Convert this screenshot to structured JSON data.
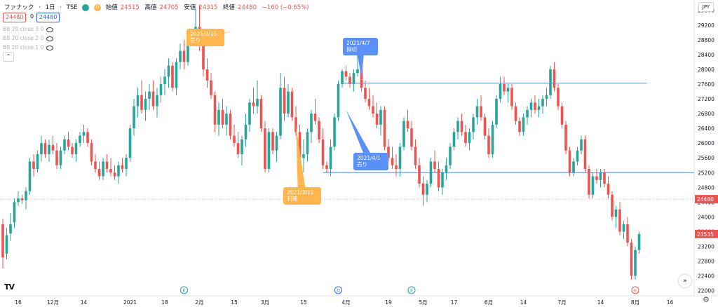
{
  "header": {
    "symbol": "ファナック",
    "interval": "1日",
    "exchange": "TSE",
    "open_label": "始値",
    "open": "24515",
    "high_label": "高値",
    "high": "24705",
    "low_label": "安値",
    "low": "24315",
    "close_label": "終値",
    "close": "24480",
    "change": "−160 (−0.65%)",
    "badge_d": "D",
    "bid": "24480",
    "spread": "0",
    "ask": "24480"
  },
  "indicators": [
    {
      "label": "BB 20 close 3 0"
    },
    {
      "label": "BB 20 close 2 0"
    },
    {
      "label": "BB 20 close 1 0"
    }
  ],
  "currency": "JPY",
  "colors": {
    "up": "#26a69a",
    "down": "#ef5350",
    "line": "#2962ff",
    "callout_orange": "#ffb74d",
    "callout_blue": "#5b8ff9"
  },
  "events": [
    {
      "text": "E",
      "color": "#26a69a",
      "x_index": 47
    },
    {
      "text": "D",
      "color": "#2962ff",
      "x_index": 87
    },
    {
      "text": "E",
      "color": "#26a69a",
      "x_index": 106
    },
    {
      "text": "E",
      "color": "#ef5350",
      "x_index": 164
    }
  ],
  "chart_data": {
    "type": "candlestick",
    "title": "",
    "xlabel": "",
    "ylabel": "",
    "ylim": [
      21860,
      29880
    ],
    "y_ticks": [
      22000,
      22400,
      22800,
      23200,
      23600,
      24000,
      24400,
      24800,
      25200,
      25600,
      26000,
      26400,
      26800,
      27200,
      27600,
      28000,
      28400,
      28800,
      29200,
      29600
    ],
    "x_ticks": [
      {
        "label": "16",
        "i": 4
      },
      {
        "label": "12月",
        "i": 13
      },
      {
        "label": "14",
        "i": 21
      },
      {
        "label": "2021",
        "i": 33
      },
      {
        "label": "18",
        "i": 42
      },
      {
        "label": "2月",
        "i": 51
      },
      {
        "label": "15",
        "i": 60
      },
      {
        "label": "3月",
        "i": 68
      },
      {
        "label": "15",
        "i": 78
      },
      {
        "label": "4月",
        "i": 89
      },
      {
        "label": "19",
        "i": 100
      },
      {
        "label": "5月",
        "i": 109
      },
      {
        "label": "17",
        "i": 117
      },
      {
        "label": "6月",
        "i": 126
      },
      {
        "label": "14",
        "i": 135
      },
      {
        "label": "7月",
        "i": 145
      },
      {
        "label": "14",
        "i": 155
      },
      {
        "label": "8月",
        "i": 164
      },
      {
        "label": "16",
        "i": 173
      }
    ],
    "last_price": 24480,
    "price_label_2": 23535,
    "support_line": {
      "price": 25200,
      "from_index": 83
    },
    "resistance_line": {
      "price": 27630,
      "from_index": 88,
      "to_index": 167
    },
    "annotations": [
      {
        "text_lines": [
          "2021/2/15",
          "売り"
        ],
        "color": "#ffb74d",
        "target_index": 60,
        "target_price": 29050
      },
      {
        "text_lines": [
          "2021/3/11",
          "利確"
        ],
        "color": "#ffb74d",
        "target_index": 76,
        "target_price": 26500
      },
      {
        "text_lines": [
          "2021/4/7",
          "損切"
        ],
        "color": "#5b8ff9",
        "target_index": 93,
        "target_price": 27750
      },
      {
        "text_lines": [
          "2021/4/1",
          "売り"
        ],
        "color": "#5b8ff9",
        "target_index": 89,
        "target_price": 26900
      }
    ],
    "candles": [
      [
        23800,
        23950,
        22600,
        22900
      ],
      [
        23000,
        23700,
        22850,
        23500
      ],
      [
        23550,
        24100,
        23350,
        23800
      ],
      [
        23850,
        24500,
        23700,
        24400
      ],
      [
        24400,
        24700,
        24300,
        24500
      ],
      [
        24500,
        24600,
        24350,
        24450
      ],
      [
        24450,
        24800,
        24200,
        24700
      ],
      [
        24700,
        25600,
        24600,
        25500
      ],
      [
        25500,
        25700,
        25100,
        25300
      ],
      [
        25300,
        25800,
        25200,
        25700
      ],
      [
        25700,
        26200,
        25500,
        26000
      ],
      [
        26000,
        26100,
        25600,
        25700
      ],
      [
        25700,
        26100,
        25500,
        25950
      ],
      [
        25950,
        26200,
        25700,
        25800
      ],
      [
        25800,
        26000,
        25300,
        25400
      ],
      [
        25400,
        25900,
        25300,
        25800
      ],
      [
        25800,
        26200,
        25700,
        26100
      ],
      [
        26100,
        26300,
        25800,
        25900
      ],
      [
        25900,
        26000,
        25600,
        25700
      ],
      [
        25700,
        26100,
        25500,
        26000
      ],
      [
        26000,
        26300,
        25900,
        26200
      ],
      [
        26200,
        26500,
        26000,
        26300
      ],
      [
        26300,
        26400,
        25900,
        26000
      ],
      [
        26000,
        26100,
        25400,
        25500
      ],
      [
        25500,
        25700,
        25200,
        25300
      ],
      [
        25300,
        25500,
        25000,
        25100
      ],
      [
        25100,
        25600,
        25000,
        25500
      ],
      [
        25500,
        25700,
        25200,
        25300
      ],
      [
        25300,
        25600,
        25100,
        25200
      ],
      [
        25200,
        25400,
        25000,
        25100
      ],
      [
        25100,
        25500,
        24900,
        25400
      ],
      [
        25400,
        25600,
        25200,
        25300
      ],
      [
        25300,
        25700,
        25100,
        25600
      ],
      [
        25600,
        26500,
        25500,
        26400
      ],
      [
        26400,
        27200,
        26200,
        27000
      ],
      [
        27000,
        27500,
        26700,
        27300
      ],
      [
        27300,
        27700,
        26800,
        26900
      ],
      [
        26900,
        27400,
        26600,
        27200
      ],
      [
        27200,
        27600,
        26900,
        27400
      ],
      [
        27400,
        27700,
        26900,
        27000
      ],
      [
        27000,
        27500,
        26700,
        27300
      ],
      [
        27300,
        27800,
        27100,
        27600
      ],
      [
        27600,
        28000,
        27300,
        27800
      ],
      [
        27800,
        28300,
        27500,
        28100
      ],
      [
        28100,
        28200,
        27400,
        27500
      ],
      [
        27500,
        28300,
        27300,
        28200
      ],
      [
        28200,
        28700,
        28000,
        28500
      ],
      [
        28500,
        28800,
        28000,
        28200
      ],
      [
        28200,
        29050,
        28100,
        28950
      ],
      [
        28950,
        29100,
        28700,
        28900
      ],
      [
        28900,
        29650,
        28700,
        29150
      ],
      [
        29150,
        29750,
        28500,
        28700
      ],
      [
        28700,
        28900,
        27800,
        28000
      ],
      [
        28000,
        28300,
        27500,
        27700
      ],
      [
        27700,
        27900,
        27200,
        27300
      ],
      [
        27300,
        27400,
        26300,
        26500
      ],
      [
        26500,
        27100,
        26200,
        26900
      ],
      [
        26900,
        27200,
        26400,
        26500
      ],
      [
        26500,
        27000,
        26200,
        26800
      ],
      [
        26800,
        26900,
        26100,
        26200
      ],
      [
        26200,
        26500,
        25900,
        26000
      ],
      [
        26000,
        26300,
        25600,
        25700
      ],
      [
        25700,
        26200,
        25400,
        26100
      ],
      [
        26100,
        26800,
        25900,
        26500
      ],
      [
        26500,
        27200,
        26300,
        27100
      ],
      [
        27100,
        27500,
        26800,
        27000
      ],
      [
        27000,
        27700,
        26800,
        27200
      ],
      [
        27200,
        27300,
        26300,
        26400
      ],
      [
        26400,
        26600,
        25200,
        25300
      ],
      [
        25300,
        26400,
        25200,
        26300
      ],
      [
        26300,
        26400,
        25700,
        25800
      ],
      [
        25800,
        26300,
        25500,
        26200
      ],
      [
        26200,
        27900,
        26100,
        27500
      ],
      [
        27500,
        27800,
        26600,
        26800
      ],
      [
        26800,
        27600,
        26700,
        27400
      ],
      [
        27400,
        27500,
        26600,
        26700
      ],
      [
        26700,
        27000,
        26200,
        26300
      ],
      [
        26300,
        26500,
        25500,
        25600
      ],
      [
        25600,
        26100,
        25200,
        25700
      ],
      [
        25700,
        26400,
        25500,
        26300
      ],
      [
        26300,
        26900,
        26000,
        26800
      ],
      [
        26800,
        27200,
        26500,
        26600
      ],
      [
        26600,
        26700,
        26000,
        26100
      ],
      [
        26100,
        26400,
        25300,
        25400
      ],
      [
        25400,
        25500,
        25200,
        25300
      ],
      [
        25300,
        26100,
        25100,
        25900
      ],
      [
        25900,
        26800,
        25800,
        26700
      ],
      [
        26700,
        27700,
        26600,
        27600
      ],
      [
        27600,
        28000,
        27500,
        27950
      ],
      [
        27950,
        28100,
        27700,
        27800
      ],
      [
        27800,
        27900,
        27500,
        27600
      ],
      [
        27600,
        28000,
        27400,
        27900
      ],
      [
        27900,
        28800,
        27800,
        28000
      ],
      [
        28000,
        28200,
        27400,
        27500
      ],
      [
        27500,
        27700,
        27100,
        27200
      ],
      [
        27200,
        27500,
        26900,
        27000
      ],
      [
        27000,
        27300,
        26700,
        26800
      ],
      [
        26800,
        27100,
        26400,
        26500
      ],
      [
        26500,
        27000,
        26200,
        26900
      ],
      [
        26900,
        27000,
        25800,
        25900
      ],
      [
        25900,
        26100,
        25500,
        25600
      ],
      [
        25600,
        25900,
        25300,
        25400
      ],
      [
        25400,
        25700,
        25100,
        25300
      ],
      [
        25300,
        26000,
        25100,
        25900
      ],
      [
        25900,
        26700,
        25800,
        26600
      ],
      [
        26600,
        26900,
        26300,
        26400
      ],
      [
        26400,
        26600,
        25800,
        25900
      ],
      [
        25900,
        26100,
        25300,
        25400
      ],
      [
        25400,
        25600,
        24800,
        24900
      ],
      [
        24900,
        25100,
        24300,
        24600
      ],
      [
        24600,
        25000,
        24400,
        24900
      ],
      [
        24900,
        25600,
        24800,
        25500
      ],
      [
        25500,
        25800,
        25200,
        25300
      ],
      [
        25300,
        25500,
        24700,
        24800
      ],
      [
        24800,
        25300,
        24600,
        25200
      ],
      [
        25200,
        25600,
        25000,
        25400
      ],
      [
        25400,
        26000,
        25300,
        25900
      ],
      [
        25900,
        26400,
        25800,
        26300
      ],
      [
        26300,
        26700,
        26100,
        26600
      ],
      [
        26600,
        26800,
        26200,
        26300
      ],
      [
        26300,
        26500,
        25900,
        26000
      ],
      [
        26000,
        26400,
        25800,
        26300
      ],
      [
        26300,
        26800,
        26100,
        26700
      ],
      [
        26700,
        27200,
        26500,
        27000
      ],
      [
        27000,
        27300,
        26600,
        26700
      ],
      [
        26700,
        26800,
        26100,
        26200
      ],
      [
        26200,
        26400,
        25600,
        25700
      ],
      [
        25700,
        26600,
        25600,
        26500
      ],
      [
        26500,
        27300,
        26400,
        27200
      ],
      [
        27200,
        27800,
        27100,
        27600
      ],
      [
        27600,
        27800,
        27300,
        27400
      ],
      [
        27400,
        27600,
        27100,
        27500
      ],
      [
        27500,
        27600,
        26900,
        27000
      ],
      [
        27000,
        27100,
        26500,
        26600
      ],
      [
        26600,
        26700,
        26200,
        26300
      ],
      [
        26300,
        26800,
        26200,
        26700
      ],
      [
        26700,
        27000,
        26500,
        26900
      ],
      [
        26900,
        27200,
        26700,
        27100
      ],
      [
        27100,
        27300,
        26800,
        26900
      ],
      [
        26900,
        27200,
        26700,
        27000
      ],
      [
        27000,
        27300,
        26800,
        27200
      ],
      [
        27200,
        27500,
        27000,
        27300
      ],
      [
        27300,
        28100,
        27200,
        28000
      ],
      [
        28000,
        28200,
        27400,
        27500
      ],
      [
        27500,
        27600,
        26900,
        27000
      ],
      [
        27000,
        27100,
        26400,
        26500
      ],
      [
        26500,
        26600,
        25700,
        25800
      ],
      [
        25800,
        25900,
        25100,
        25200
      ],
      [
        25200,
        25600,
        25100,
        25500
      ],
      [
        25500,
        25900,
        25400,
        25800
      ],
      [
        25800,
        26200,
        25700,
        26100
      ],
      [
        26100,
        26200,
        25200,
        25300
      ],
      [
        25300,
        25400,
        24500,
        24600
      ],
      [
        24600,
        25200,
        24500,
        25100
      ],
      [
        25100,
        25300,
        24900,
        25000
      ],
      [
        25000,
        25300,
        24800,
        25200
      ],
      [
        25200,
        25300,
        24800,
        24900
      ],
      [
        24900,
        25100,
        24500,
        24600
      ],
      [
        24600,
        24700,
        23900,
        24000
      ],
      [
        24000,
        24300,
        23700,
        24200
      ],
      [
        24200,
        24400,
        23500,
        23600
      ],
      [
        23600,
        23900,
        23400,
        23800
      ],
      [
        23800,
        24000,
        23200,
        23300
      ],
      [
        23300,
        23400,
        22300,
        22400
      ],
      [
        22400,
        23200,
        22300,
        23100
      ],
      [
        23100,
        23600,
        23000,
        23535
      ]
    ]
  }
}
